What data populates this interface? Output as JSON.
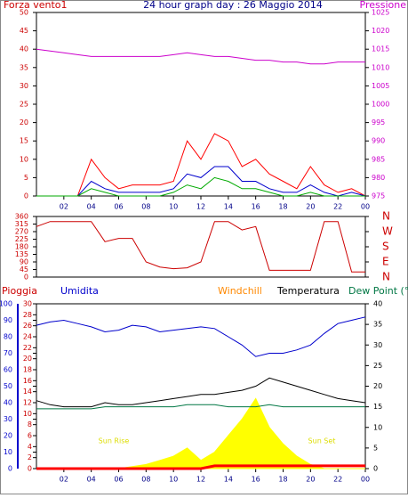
{
  "chart_data": [
    {
      "type": "line",
      "title": "24 hour graph day : 26 Maggio 2014",
      "ylabel": "Forza vento1",
      "y2label": "Pressione",
      "x": [
        0,
        1,
        2,
        3,
        4,
        5,
        6,
        7,
        8,
        9,
        10,
        11,
        12,
        13,
        14,
        15,
        16,
        17,
        18,
        19,
        20,
        21,
        22,
        23,
        24
      ],
      "xlim": [
        0,
        24
      ],
      "xticks": [
        {
          "value": 2,
          "label": "02"
        },
        {
          "value": 4,
          "label": "04"
        },
        {
          "value": 6,
          "label": "06"
        },
        {
          "value": 8,
          "label": "08"
        },
        {
          "value": 10,
          "label": "10"
        },
        12,
        14,
        16,
        18,
        20,
        22,
        {
          "value": 24,
          "label": "00"
        }
      ],
      "ylim": [
        0,
        50
      ],
      "yticks": [
        0,
        5,
        10,
        15,
        20,
        25,
        30,
        35,
        40,
        45,
        50
      ],
      "ycolor": "#cc0000",
      "y2lim": [
        975,
        1025
      ],
      "y2ticks": [
        975,
        980,
        985,
        990,
        995,
        1000,
        1005,
        1010,
        1015,
        1020,
        1025
      ],
      "y2color": "#cc00cc",
      "series": [
        {
          "color": "#ff0000",
          "values": [
            0,
            0,
            0,
            0,
            10,
            5,
            2,
            3,
            3,
            3,
            4,
            15,
            10,
            17,
            15,
            8,
            10,
            6,
            4,
            2,
            8,
            3,
            1,
            2,
            0
          ]
        },
        {
          "color": "#0000cc",
          "values": [
            0,
            0,
            0,
            0,
            4,
            2,
            1,
            1,
            1,
            1,
            2,
            6,
            5,
            8,
            8,
            4,
            4,
            2,
            1,
            1,
            3,
            1,
            0,
            1,
            0
          ]
        },
        {
          "color": "#00aa00",
          "values": [
            0,
            0,
            0,
            0,
            2,
            1,
            0,
            0,
            0,
            0,
            1,
            3,
            2,
            5,
            4,
            2,
            2,
            1,
            0,
            0,
            1,
            0,
            0,
            0,
            0
          ]
        },
        {
          "color": "#cc00cc",
          "axis": "y2",
          "values": [
            1015,
            1014.5,
            1014,
            1013.5,
            1013,
            1013,
            1013,
            1013,
            1013,
            1013,
            1013.5,
            1014,
            1013.5,
            1013,
            1013,
            1012.5,
            1012,
            1012,
            1011.5,
            1011.5,
            1011,
            1011,
            1011.5,
            1011.5,
            1011.5
          ]
        }
      ]
    },
    {
      "type": "line",
      "x": [
        0,
        1,
        2,
        3,
        4,
        5,
        6,
        7,
        8,
        9,
        10,
        11,
        12,
        13,
        14,
        15,
        16,
        17,
        18,
        19,
        20,
        21,
        22,
        23,
        24
      ],
      "xlim": [
        0,
        24
      ],
      "ylim": [
        0,
        360
      ],
      "yticks": [
        0,
        45,
        90,
        135,
        180,
        225,
        270,
        315,
        360
      ],
      "ycolor": "#cc0000",
      "y2lim": [
        0,
        360
      ],
      "y2ticks": [
        {
          "value": 0,
          "label": "N"
        },
        {
          "value": 90,
          "label": "E"
        },
        {
          "value": 180,
          "label": "S"
        },
        {
          "value": 270,
          "label": "W"
        },
        {
          "value": 360,
          "label": "N"
        }
      ],
      "y2color": "#cc0000",
      "series": [
        {
          "color": "#cc0000",
          "values": [
            300,
            330,
            330,
            330,
            330,
            210,
            230,
            230,
            90,
            60,
            50,
            55,
            90,
            330,
            330,
            280,
            300,
            40,
            40,
            40,
            40,
            330,
            330,
            30,
            30
          ]
        }
      ]
    },
    {
      "type": "line",
      "x": [
        0,
        1,
        2,
        3,
        4,
        5,
        6,
        7,
        8,
        9,
        10,
        11,
        12,
        13,
        14,
        15,
        16,
        17,
        18,
        19,
        20,
        21,
        22,
        23,
        24
      ],
      "xlim": [
        0,
        24
      ],
      "xticks": [
        {
          "value": 2,
          "label": "02"
        },
        {
          "value": 4,
          "label": "04"
        },
        {
          "value": 6,
          "label": "06"
        },
        {
          "value": 8,
          "label": "08"
        },
        {
          "value": 10,
          "label": "10"
        },
        12,
        14,
        16,
        18,
        20,
        22,
        {
          "value": 24,
          "label": "00"
        }
      ],
      "ylim": [
        0,
        100
      ],
      "yticks": [
        0,
        10,
        20,
        30,
        40,
        50,
        60,
        70,
        80,
        90,
        100
      ],
      "ycolor": "#0000cc",
      "y3lim": [
        0,
        30
      ],
      "y3ticks": [
        0,
        2,
        4,
        6,
        8,
        10,
        12,
        14,
        16,
        18,
        20,
        22,
        24,
        26,
        28,
        30
      ],
      "y3color": "#cc0000",
      "y2lim": [
        0,
        40
      ],
      "y2ticks": [
        0,
        5,
        10,
        15,
        20,
        25,
        30,
        35,
        40
      ],
      "y2color": "#000000",
      "windchill_label": "Windchill",
      "annotations": [
        "Sun Rise",
        "Sun Set"
      ],
      "series": [
        {
          "color": "#ffff00",
          "axis": "y2",
          "area": true,
          "values": [
            0,
            0,
            0,
            0,
            0,
            0,
            0,
            0.5,
            1,
            2,
            3,
            5,
            2,
            4,
            8,
            12,
            17,
            10,
            6,
            3,
            1,
            0,
            0,
            0,
            0
          ]
        },
        {
          "name": "Pioggia",
          "color": "#ff0000",
          "axis": "y3",
          "values": [
            0,
            0,
            0,
            0,
            0,
            0,
            0,
            0,
            0,
            0,
            0,
            0,
            0,
            0.5,
            0.5,
            0.5,
            0.5,
            0.5,
            0.5,
            0.5,
            0.5,
            0.5,
            0.5,
            0.5,
            0.5
          ]
        },
        {
          "name": "Umidita",
          "color": "#0000cc",
          "values": [
            87,
            89,
            90,
            88,
            86,
            83,
            84,
            87,
            86,
            83,
            84,
            85,
            86,
            85,
            80,
            75,
            68,
            70,
            70,
            72,
            75,
            82,
            88,
            90,
            92
          ]
        },
        {
          "name": "Temperatura",
          "color": "#000000",
          "axis": "y2",
          "values": [
            16.5,
            15.5,
            15,
            15,
            15,
            16,
            15.5,
            15.5,
            16,
            16.5,
            17,
            17.5,
            18,
            18,
            18.5,
            19,
            20,
            22,
            21,
            20,
            19,
            18,
            17,
            16.5,
            16
          ]
        },
        {
          "name": "Dew Point (°C",
          "color": "#007744",
          "axis": "y2",
          "values": [
            14.5,
            14.5,
            14.5,
            14.5,
            14.5,
            15,
            15,
            15,
            15,
            15,
            15,
            15.5,
            15.5,
            15.5,
            15,
            15,
            15,
            15.5,
            15,
            15,
            15,
            15,
            15,
            15,
            15
          ]
        }
      ]
    }
  ]
}
